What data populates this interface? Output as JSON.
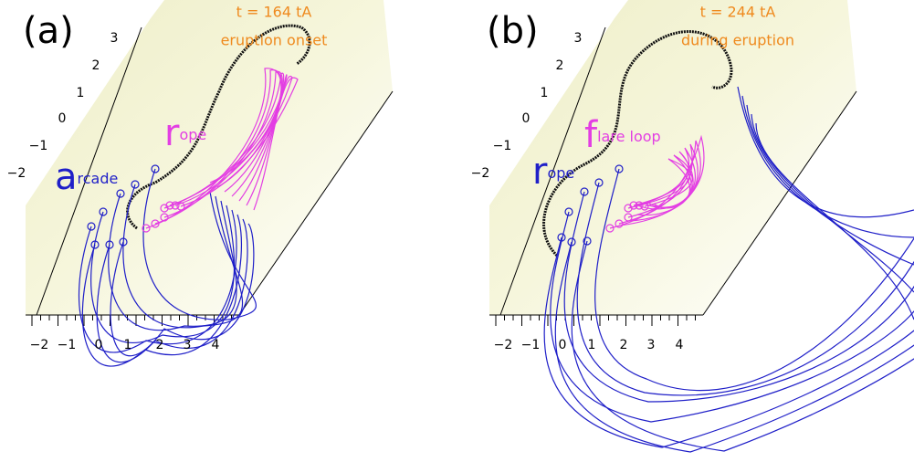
{
  "panels": [
    {
      "label": "(a)",
      "time": "t = 164 tA",
      "phase": "eruption onset",
      "annotations": [
        {
          "initial": "r",
          "rest": "ope",
          "color": "#e33ee3"
        },
        {
          "initial": "a",
          "rest": "rcade",
          "color": "#1f1fc8"
        }
      ],
      "yticks": [
        "3",
        "2",
        "1",
        "0",
        "−1",
        "−2"
      ],
      "xticks": [
        "−2",
        "−1",
        "0",
        "1",
        "2",
        "3",
        "4"
      ]
    },
    {
      "label": "(b)",
      "time": "t = 244 tA",
      "phase": "during eruption",
      "annotations": [
        {
          "initial": "f",
          "rest": "lare loop",
          "color": "#e33ee3"
        },
        {
          "initial": "r",
          "rest": "ope",
          "color": "#1f1fc8"
        }
      ],
      "yticks": [
        "3",
        "2",
        "1",
        "0",
        "−1",
        "−2"
      ],
      "xticks": [
        "−2",
        "−1",
        "0",
        "1",
        "2",
        "3",
        "4"
      ]
    }
  ]
}
